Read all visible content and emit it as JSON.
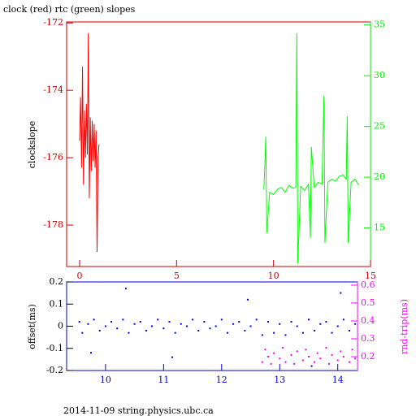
{
  "chart_data": [
    {
      "type": "line",
      "title": "clock (red) rtc (green) slopes",
      "ylabel": "clockslope",
      "xlim": [
        -0.67,
        15
      ],
      "xticks": [
        0,
        5,
        10,
        15
      ],
      "ylim": [
        -179.23,
        -171.97
      ],
      "yticks": [
        -172,
        -174,
        -176,
        -178
      ],
      "y2lim": [
        11.2,
        35.3
      ],
      "y2ticks": [
        15,
        20,
        25,
        30,
        35
      ],
      "xtick_color": "#cc0000",
      "ytick_color": "#cc0000",
      "y2tick_color": "#00ee00",
      "series": [
        {
          "name": "clock",
          "color": "#ff0000",
          "x": [
            0,
            0.05,
            0.1,
            0.15,
            0.2,
            0.25,
            0.3,
            0.35,
            0.4,
            0.45,
            0.5,
            0.55,
            0.6,
            0.65,
            0.7,
            0.75,
            0.8,
            0.85,
            0.9,
            0.95,
            1.0
          ],
          "values": [
            -175.5,
            -174.2,
            -176.3,
            -173.3,
            -176.8,
            -174.6,
            -176.0,
            -174.4,
            -175.9,
            -172.3,
            -177.2,
            -174.8,
            -176.4,
            -174.9,
            -176.1,
            -175.0,
            -176.3,
            -175.2,
            -178.8,
            -176.0,
            -175.6
          ]
        },
        {
          "name": "rtc",
          "color": "#00ff00",
          "axis": "y2",
          "x": [
            9.5,
            9.55,
            9.6,
            9.65,
            9.8,
            10.0,
            10.2,
            10.4,
            10.6,
            10.8,
            11.0,
            11.15,
            11.2,
            11.25,
            11.4,
            11.6,
            11.8,
            11.9,
            11.95,
            12.1,
            12.3,
            12.5,
            12.6,
            12.65,
            12.8,
            13.0,
            13.2,
            13.4,
            13.6,
            13.75,
            13.8,
            13.85,
            14.0,
            14.2,
            14.4
          ],
          "values": [
            18.8,
            21,
            24,
            14.5,
            18.5,
            18.3,
            18.8,
            19,
            18.5,
            19.2,
            18.9,
            19,
            34.2,
            11.5,
            19.1,
            18.7,
            19.3,
            14,
            23,
            19,
            19.5,
            19.3,
            28,
            13.5,
            19.5,
            19.8,
            19.6,
            20.1,
            20.2,
            19.8,
            26,
            13.5,
            19.5,
            19.8,
            19.2
          ]
        }
      ]
    },
    {
      "type": "scatter",
      "ylabel": "offset(ms)",
      "y2label": "rnd-trip(ms)",
      "footer": "2014-11-09 string.physics.ubc.ca",
      "xlim": [
        9.33,
        14.34
      ],
      "xticks": [
        10,
        11,
        12,
        13,
        14
      ],
      "ylim": [
        -0.2,
        0.2
      ],
      "yticks": [
        0.2,
        0.1,
        0,
        -0.1,
        -0.2
      ],
      "y2lim": [
        0.123,
        0.618
      ],
      "y2ticks": [
        0.2,
        0.3,
        0.4,
        0.5,
        0.6
      ],
      "xtick_color": "#0000cc",
      "ytick_color": "#000000",
      "y2tick_color": "#ff00ff",
      "series": [
        {
          "name": "offset",
          "color": "#0000ff",
          "x": [
            9.55,
            9.6,
            9.7,
            9.8,
            9.9,
            10.0,
            10.1,
            10.2,
            10.3,
            10.4,
            10.5,
            10.6,
            10.7,
            10.8,
            10.9,
            11.0,
            11.1,
            11.2,
            11.3,
            11.4,
            11.5,
            11.6,
            11.7,
            11.8,
            11.9,
            12.0,
            12.1,
            12.2,
            12.3,
            12.4,
            12.5,
            12.6,
            12.7,
            12.8,
            12.9,
            13.0,
            13.1,
            13.2,
            13.3,
            13.4,
            13.5,
            13.6,
            13.7,
            13.8,
            13.9,
            14.0,
            14.1,
            14.2,
            14.3,
            10.35,
            11.15,
            12.45,
            13.55,
            9.75,
            14.05
          ],
          "values": [
            0.02,
            -0.03,
            0.01,
            0.03,
            -0.02,
            0.0,
            0.02,
            -0.01,
            0.03,
            -0.03,
            0.01,
            0.02,
            -0.02,
            0.0,
            0.03,
            -0.01,
            0.02,
            -0.03,
            0.01,
            0.0,
            0.03,
            -0.02,
            0.02,
            -0.01,
            0.0,
            0.03,
            -0.03,
            0.01,
            0.02,
            -0.02,
            0.0,
            0.03,
            -0.04,
            0.02,
            -0.03,
            0.01,
            -0.04,
            0.02,
            0.0,
            -0.03,
            0.03,
            -0.02,
            0.01,
            0.02,
            -0.03,
            0.0,
            0.03,
            -0.02,
            0.01,
            0.17,
            -0.14,
            0.12,
            -0.18,
            -0.12,
            0.15
          ]
        },
        {
          "name": "rnd-trip",
          "color": "#ff00ff",
          "axis": "y2",
          "x": [
            12.7,
            12.75,
            12.8,
            12.85,
            12.9,
            13.0,
            13.05,
            13.1,
            13.2,
            13.25,
            13.3,
            13.4,
            13.45,
            13.5,
            13.6,
            13.65,
            13.7,
            13.8,
            13.85,
            13.9,
            14.0,
            14.05,
            14.1,
            14.2,
            14.25,
            14.3
          ],
          "values": [
            0.17,
            0.24,
            0.2,
            0.16,
            0.22,
            0.19,
            0.25,
            0.17,
            0.21,
            0.16,
            0.23,
            0.18,
            0.24,
            0.2,
            0.17,
            0.22,
            0.19,
            0.25,
            0.16,
            0.21,
            0.18,
            0.23,
            0.2,
            0.17,
            0.24,
            0.19
          ]
        }
      ]
    }
  ]
}
